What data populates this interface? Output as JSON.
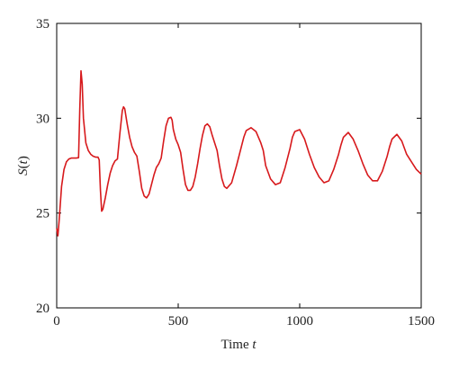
{
  "chart_data": {
    "type": "line",
    "xlabel": "Time t",
    "ylabel": "S(t)",
    "xlim": [
      0,
      1500
    ],
    "ylim": [
      20,
      35
    ],
    "xticks": [
      0,
      500,
      1000,
      1500
    ],
    "yticks": [
      20,
      25,
      30,
      35
    ],
    "grid": false,
    "series": [
      {
        "color": "#d7191c",
        "x": [
          0,
          5,
          10,
          20,
          30,
          40,
          50,
          60,
          70,
          80,
          90,
          95,
          100,
          105,
          110,
          120,
          130,
          140,
          150,
          160,
          170,
          175,
          180,
          185,
          190,
          200,
          210,
          220,
          230,
          240,
          250,
          260,
          270,
          275,
          280,
          285,
          290,
          300,
          310,
          320,
          330,
          340,
          350,
          360,
          370,
          380,
          390,
          400,
          410,
          420,
          430,
          440,
          450,
          460,
          470,
          475,
          480,
          490,
          500,
          510,
          520,
          530,
          540,
          550,
          560,
          570,
          580,
          590,
          600,
          610,
          620,
          630,
          640,
          650,
          660,
          670,
          680,
          690,
          700,
          720,
          740,
          760,
          770,
          780,
          800,
          820,
          840,
          850,
          860,
          880,
          900,
          920,
          940,
          960,
          970,
          980,
          1000,
          1020,
          1040,
          1060,
          1080,
          1100,
          1120,
          1140,
          1160,
          1170,
          1180,
          1200,
          1220,
          1240,
          1260,
          1280,
          1300,
          1320,
          1340,
          1360,
          1370,
          1380,
          1400,
          1420,
          1440,
          1460,
          1480,
          1500
        ],
        "y": [
          24.2,
          23.8,
          24.6,
          26.4,
          27.3,
          27.7,
          27.85,
          27.9,
          27.9,
          27.9,
          27.92,
          30.5,
          32.5,
          31.8,
          30.0,
          28.7,
          28.3,
          28.1,
          28.0,
          27.95,
          27.95,
          27.8,
          26.2,
          25.1,
          25.2,
          25.8,
          26.5,
          27.1,
          27.5,
          27.75,
          27.85,
          29.2,
          30.4,
          30.6,
          30.5,
          30.1,
          29.7,
          29.0,
          28.5,
          28.2,
          28.0,
          27.2,
          26.3,
          25.9,
          25.8,
          26.0,
          26.5,
          27.0,
          27.4,
          27.6,
          27.9,
          28.8,
          29.6,
          30.0,
          30.05,
          29.9,
          29.4,
          28.9,
          28.6,
          28.2,
          27.3,
          26.5,
          26.2,
          26.2,
          26.4,
          26.9,
          27.6,
          28.4,
          29.1,
          29.6,
          29.7,
          29.55,
          29.1,
          28.7,
          28.3,
          27.5,
          26.8,
          26.4,
          26.3,
          26.6,
          27.5,
          28.5,
          29.0,
          29.35,
          29.5,
          29.3,
          28.7,
          28.3,
          27.5,
          26.8,
          26.5,
          26.6,
          27.4,
          28.4,
          29.0,
          29.3,
          29.4,
          28.9,
          28.1,
          27.4,
          26.9,
          26.6,
          26.7,
          27.3,
          28.1,
          28.6,
          29.0,
          29.25,
          28.9,
          28.3,
          27.6,
          27.0,
          26.7,
          26.7,
          27.2,
          28.0,
          28.5,
          28.9,
          29.15,
          28.8,
          28.1,
          27.7,
          27.3,
          27.05
        ]
      }
    ]
  }
}
